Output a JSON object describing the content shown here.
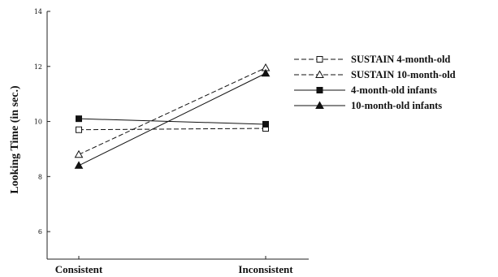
{
  "chart_data": {
    "type": "line",
    "title": "",
    "xlabel": "",
    "ylabel": "Looking Time (in sec.)",
    "categories": [
      "Consistent",
      "Inconsistent"
    ],
    "yticks": [
      6,
      8,
      10,
      12,
      14
    ],
    "ylim": [
      5,
      14
    ],
    "grid": false,
    "legend_position": "right",
    "series": [
      {
        "name": "SUSTAIN 4-month-old",
        "values": [
          9.7,
          9.75
        ],
        "line": "dashed",
        "marker": "square-open"
      },
      {
        "name": "SUSTAIN 10-month-old",
        "values": [
          8.8,
          11.95
        ],
        "line": "dashed",
        "marker": "triangle-open"
      },
      {
        "name": "4-month-old infants",
        "values": [
          10.1,
          9.9
        ],
        "line": "solid",
        "marker": "square-filled"
      },
      {
        "name": "10-month-old infants",
        "values": [
          8.4,
          11.75
        ],
        "line": "solid",
        "marker": "triangle-filled"
      }
    ]
  }
}
